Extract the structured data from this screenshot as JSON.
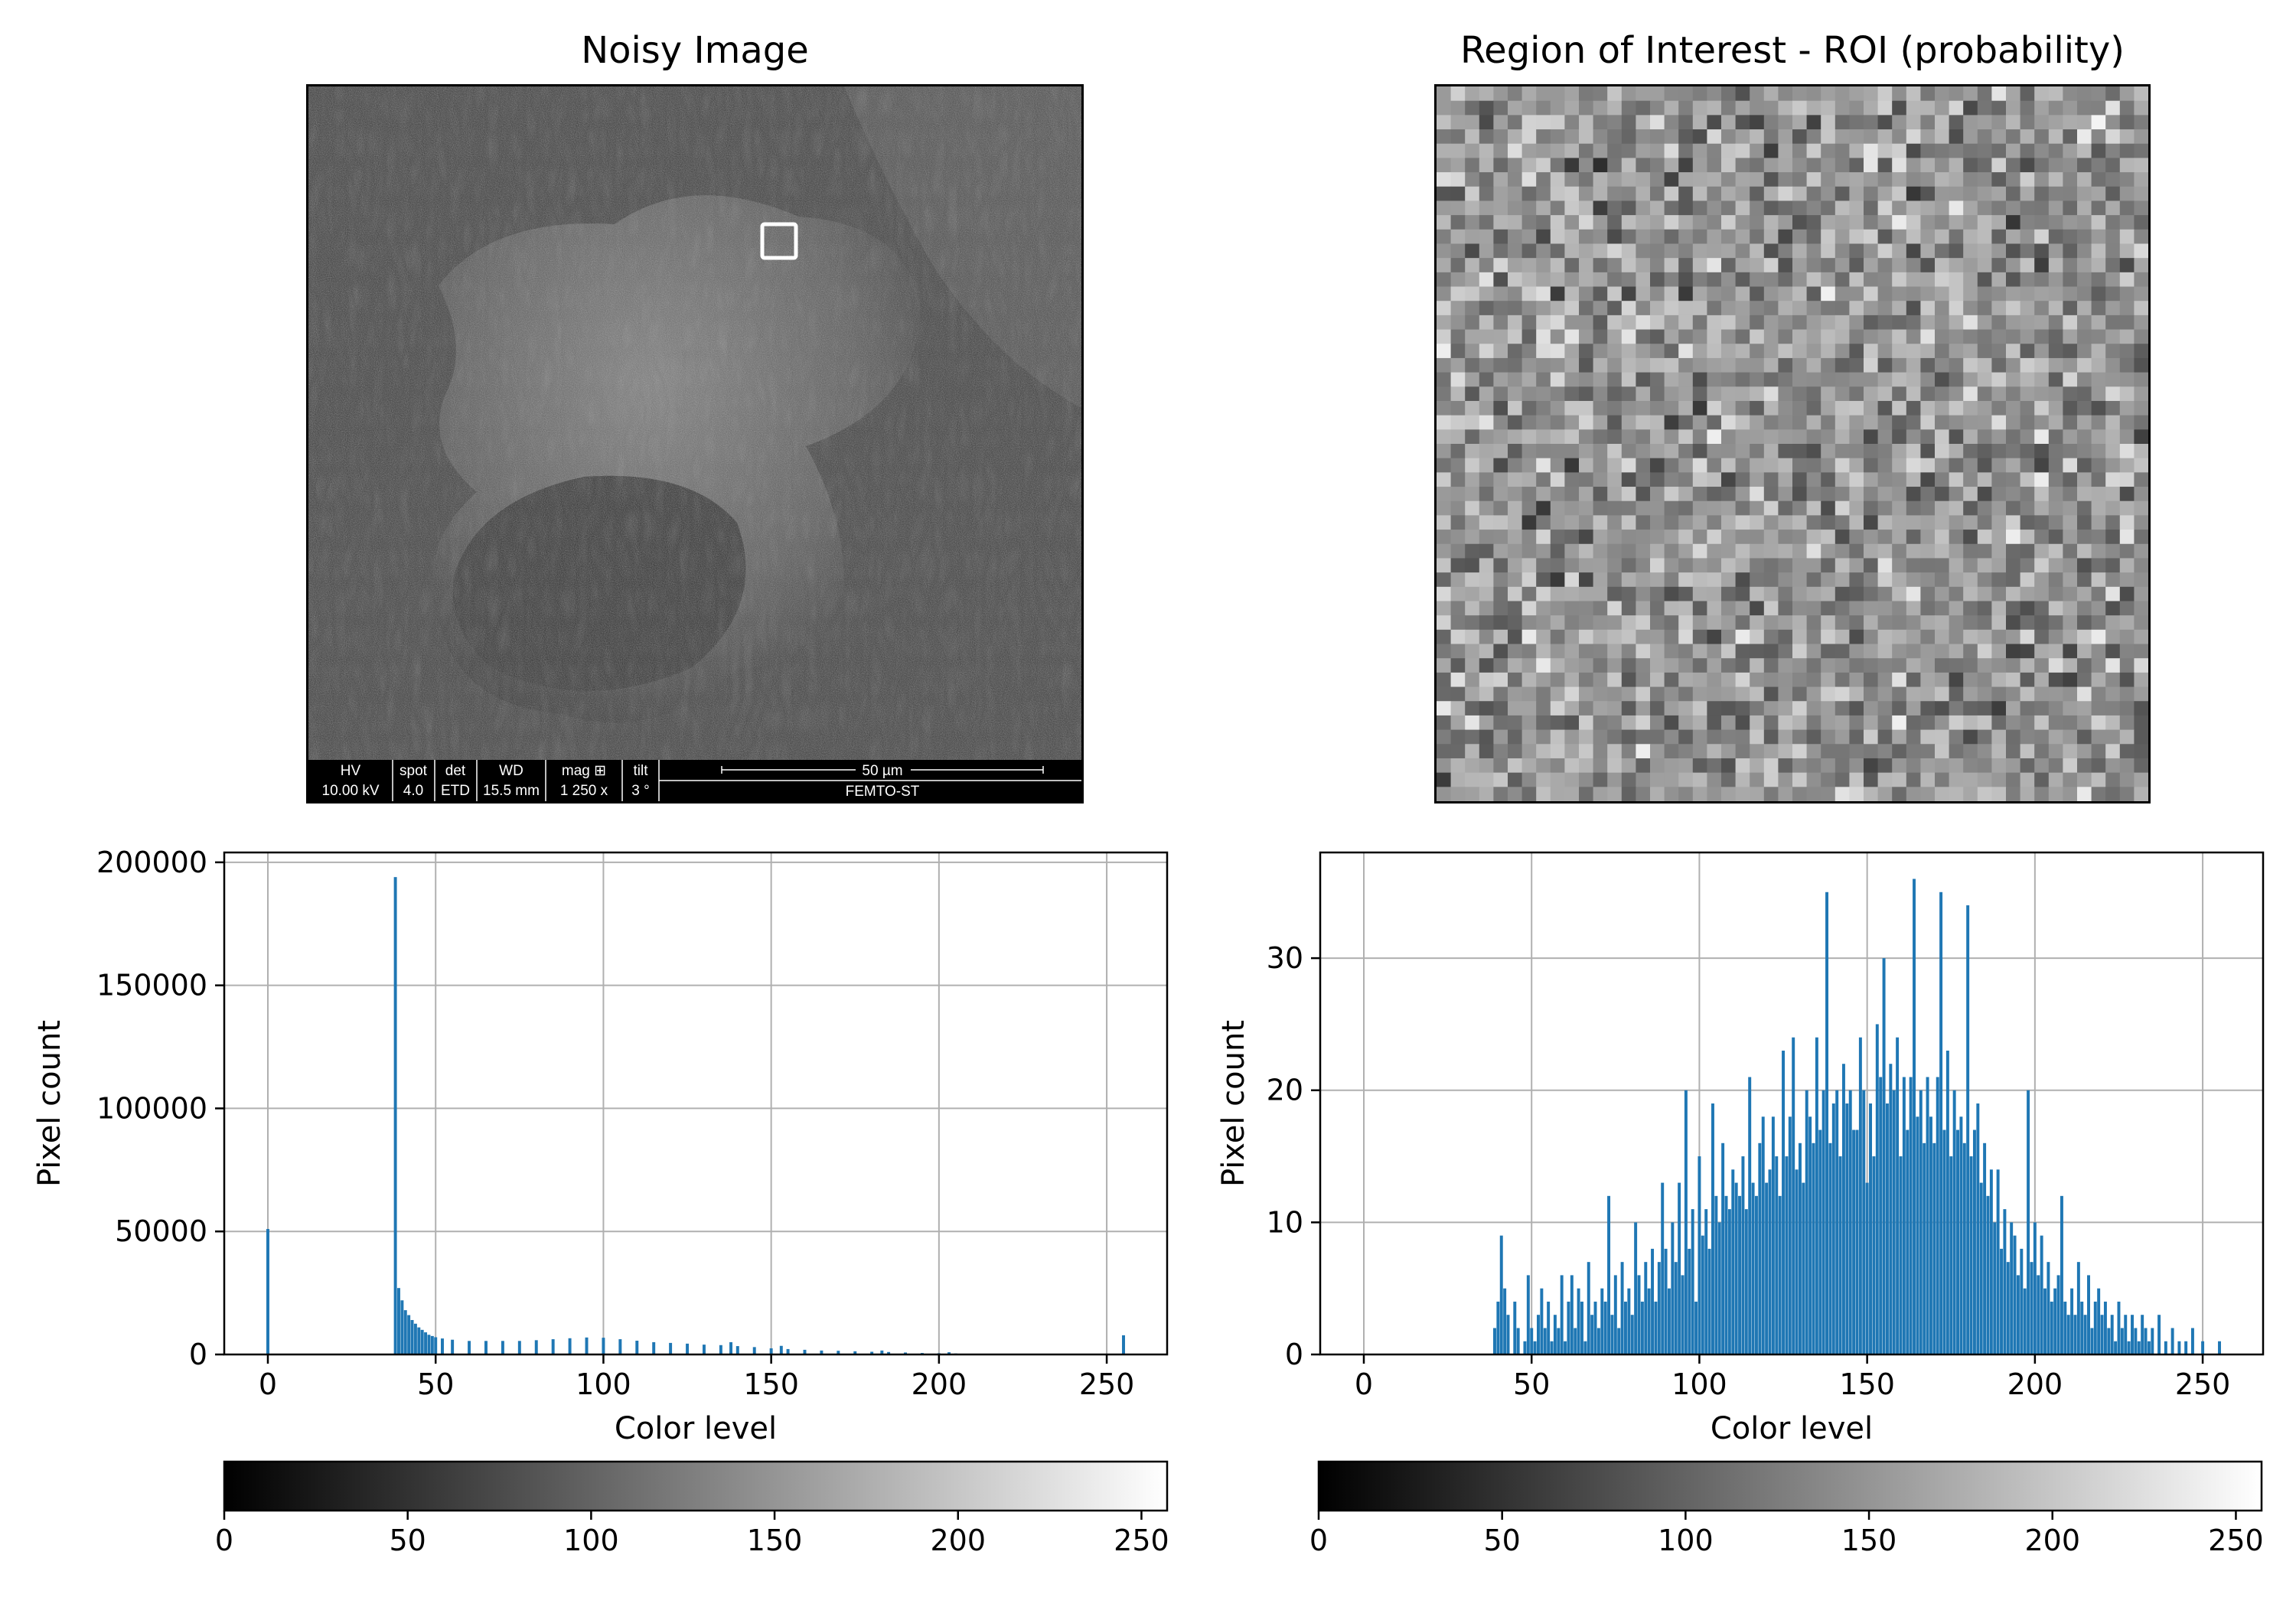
{
  "panels": {
    "noisy": {
      "title": "Noisy Image",
      "sem_bar": {
        "headers": [
          "HV",
          "spot",
          "det",
          "WD",
          "mag ⊞",
          "tilt"
        ],
        "values": [
          "10.00 kV",
          "4.0",
          "ETD",
          "15.5 mm",
          "1 250 x",
          "3 °"
        ],
        "scale_label": "50 µm",
        "institution": "FEMTO-ST"
      }
    },
    "roi": {
      "title": "Region of Interest - ROI (probability)"
    }
  },
  "colors": {
    "bar": "#1f77b4",
    "grid": "#b0b0b0",
    "roi_marker": "#ffffff"
  },
  "chart_data": [
    {
      "type": "bar",
      "name": "full-image-histogram",
      "xlabel": "Color level",
      "ylabel": "Pixel count",
      "xlim": [
        -13,
        268
      ],
      "ylim": [
        0,
        204000
      ],
      "xticks": [
        0,
        50,
        100,
        150,
        200,
        250
      ],
      "yticks": [
        0,
        50000,
        100000,
        150000,
        200000
      ],
      "grid": true,
      "points": [
        [
          0,
          51000
        ],
        [
          38,
          194000
        ],
        [
          39,
          27000
        ],
        [
          40,
          22000
        ],
        [
          41,
          18000
        ],
        [
          42,
          16000
        ],
        [
          43,
          14000
        ],
        [
          44,
          12500
        ],
        [
          45,
          11000
        ],
        [
          46,
          10000
        ],
        [
          47,
          9000
        ],
        [
          48,
          8000
        ],
        [
          49,
          7500
        ],
        [
          50,
          7000
        ],
        [
          52,
          6500
        ],
        [
          55,
          6000
        ],
        [
          60,
          5500
        ],
        [
          65,
          5500
        ],
        [
          70,
          5500
        ],
        [
          75,
          5500
        ],
        [
          80,
          5800
        ],
        [
          85,
          6200
        ],
        [
          90,
          6600
        ],
        [
          95,
          6900
        ],
        [
          100,
          6800
        ],
        [
          105,
          6200
        ],
        [
          110,
          5600
        ],
        [
          115,
          5000
        ],
        [
          120,
          4700
        ],
        [
          125,
          4400
        ],
        [
          130,
          4000
        ],
        [
          135,
          3800
        ],
        [
          138,
          5000
        ],
        [
          140,
          3400
        ],
        [
          145,
          3000
        ],
        [
          150,
          2500
        ],
        [
          153,
          3500
        ],
        [
          155,
          2200
        ],
        [
          160,
          1900
        ],
        [
          165,
          1600
        ],
        [
          170,
          1500
        ],
        [
          175,
          1300
        ],
        [
          180,
          1100
        ],
        [
          183,
          1600
        ],
        [
          185,
          1000
        ],
        [
          190,
          800
        ],
        [
          195,
          600
        ],
        [
          200,
          500
        ],
        [
          203,
          900
        ],
        [
          205,
          400
        ],
        [
          210,
          300
        ],
        [
          215,
          200
        ],
        [
          220,
          150
        ],
        [
          230,
          100
        ],
        [
          240,
          60
        ],
        [
          250,
          40
        ],
        [
          255,
          7800
        ]
      ]
    },
    {
      "type": "bar",
      "name": "roi-histogram",
      "xlabel": "Color level",
      "ylabel": "Pixel count",
      "xlim": [
        -13,
        268
      ],
      "ylim": [
        0,
        38
      ],
      "xticks": [
        0,
        50,
        100,
        150,
        200,
        250
      ],
      "yticks": [
        0,
        10,
        20,
        30
      ],
      "grid": true,
      "points": [
        [
          39,
          2
        ],
        [
          40,
          4
        ],
        [
          41,
          9
        ],
        [
          42,
          5
        ],
        [
          43,
          3
        ],
        [
          45,
          4
        ],
        [
          46,
          2
        ],
        [
          48,
          1
        ],
        [
          49,
          6
        ],
        [
          50,
          2
        ],
        [
          51,
          1
        ],
        [
          52,
          3
        ],
        [
          53,
          5
        ],
        [
          54,
          2
        ],
        [
          55,
          4
        ],
        [
          56,
          1
        ],
        [
          57,
          3
        ],
        [
          58,
          2
        ],
        [
          59,
          6
        ],
        [
          60,
          1
        ],
        [
          61,
          4
        ],
        [
          62,
          6
        ],
        [
          63,
          2
        ],
        [
          64,
          5
        ],
        [
          65,
          4
        ],
        [
          66,
          1
        ],
        [
          67,
          7
        ],
        [
          68,
          3
        ],
        [
          69,
          4
        ],
        [
          70,
          2
        ],
        [
          71,
          5
        ],
        [
          72,
          4
        ],
        [
          73,
          12
        ],
        [
          74,
          3
        ],
        [
          75,
          6
        ],
        [
          76,
          2
        ],
        [
          77,
          7
        ],
        [
          78,
          4
        ],
        [
          79,
          5
        ],
        [
          80,
          3
        ],
        [
          81,
          10
        ],
        [
          82,
          6
        ],
        [
          83,
          4
        ],
        [
          84,
          7
        ],
        [
          85,
          5
        ],
        [
          86,
          8
        ],
        [
          87,
          4
        ],
        [
          88,
          7
        ],
        [
          89,
          13
        ],
        [
          90,
          8
        ],
        [
          91,
          5
        ],
        [
          92,
          10
        ],
        [
          93,
          7
        ],
        [
          94,
          13
        ],
        [
          95,
          6
        ],
        [
          96,
          20
        ],
        [
          97,
          8
        ],
        [
          98,
          11
        ],
        [
          99,
          4
        ],
        [
          100,
          15
        ],
        [
          101,
          9
        ],
        [
          102,
          11
        ],
        [
          103,
          8
        ],
        [
          104,
          19
        ],
        [
          105,
          12
        ],
        [
          106,
          10
        ],
        [
          107,
          16
        ],
        [
          108,
          12
        ],
        [
          109,
          11
        ],
        [
          110,
          14
        ],
        [
          111,
          13
        ],
        [
          112,
          12
        ],
        [
          113,
          15
        ],
        [
          114,
          11
        ],
        [
          115,
          21
        ],
        [
          116,
          13
        ],
        [
          117,
          12
        ],
        [
          118,
          16
        ],
        [
          119,
          18
        ],
        [
          120,
          13
        ],
        [
          121,
          14
        ],
        [
          122,
          18
        ],
        [
          123,
          15
        ],
        [
          124,
          12
        ],
        [
          125,
          23
        ],
        [
          126,
          15
        ],
        [
          127,
          18
        ],
        [
          128,
          24
        ],
        [
          129,
          14
        ],
        [
          130,
          16
        ],
        [
          131,
          13
        ],
        [
          132,
          20
        ],
        [
          133,
          18
        ],
        [
          134,
          16
        ],
        [
          135,
          24
        ],
        [
          136,
          17
        ],
        [
          137,
          20
        ],
        [
          138,
          35
        ],
        [
          139,
          16
        ],
        [
          140,
          19
        ],
        [
          141,
          20
        ],
        [
          142,
          15
        ],
        [
          143,
          22
        ],
        [
          144,
          19
        ],
        [
          145,
          20
        ],
        [
          146,
          17
        ],
        [
          147,
          17
        ],
        [
          148,
          24
        ],
        [
          149,
          20
        ],
        [
          150,
          13
        ],
        [
          151,
          19
        ],
        [
          152,
          15
        ],
        [
          153,
          25
        ],
        [
          154,
          21
        ],
        [
          155,
          30
        ],
        [
          156,
          19
        ],
        [
          157,
          22
        ],
        [
          158,
          20
        ],
        [
          159,
          24
        ],
        [
          160,
          15
        ],
        [
          161,
          21
        ],
        [
          162,
          17
        ],
        [
          163,
          21
        ],
        [
          164,
          36
        ],
        [
          165,
          18
        ],
        [
          166,
          20
        ],
        [
          167,
          16
        ],
        [
          168,
          21
        ],
        [
          169,
          18
        ],
        [
          170,
          16
        ],
        [
          171,
          21
        ],
        [
          172,
          35
        ],
        [
          173,
          17
        ],
        [
          174,
          23
        ],
        [
          175,
          15
        ],
        [
          176,
          20
        ],
        [
          177,
          17
        ],
        [
          178,
          18
        ],
        [
          179,
          16
        ],
        [
          180,
          34
        ],
        [
          181,
          15
        ],
        [
          182,
          17
        ],
        [
          183,
          19
        ],
        [
          184,
          13
        ],
        [
          185,
          16
        ],
        [
          186,
          12
        ],
        [
          187,
          14
        ],
        [
          188,
          10
        ],
        [
          189,
          14
        ],
        [
          190,
          8
        ],
        [
          191,
          11
        ],
        [
          192,
          7
        ],
        [
          193,
          10
        ],
        [
          194,
          9
        ],
        [
          195,
          6
        ],
        [
          196,
          8
        ],
        [
          197,
          5
        ],
        [
          198,
          20
        ],
        [
          199,
          7
        ],
        [
          200,
          10
        ],
        [
          201,
          6
        ],
        [
          202,
          9
        ],
        [
          203,
          5
        ],
        [
          204,
          7
        ],
        [
          205,
          4
        ],
        [
          206,
          5
        ],
        [
          207,
          6
        ],
        [
          208,
          12
        ],
        [
          209,
          4
        ],
        [
          210,
          3
        ],
        [
          211,
          5
        ],
        [
          212,
          3
        ],
        [
          213,
          7
        ],
        [
          214,
          4
        ],
        [
          215,
          3
        ],
        [
          216,
          6
        ],
        [
          217,
          2
        ],
        [
          218,
          4
        ],
        [
          219,
          5
        ],
        [
          220,
          3
        ],
        [
          221,
          4
        ],
        [
          222,
          2
        ],
        [
          223,
          3
        ],
        [
          224,
          1
        ],
        [
          225,
          4
        ],
        [
          226,
          2
        ],
        [
          227,
          3
        ],
        [
          228,
          1
        ],
        [
          229,
          3
        ],
        [
          230,
          2
        ],
        [
          231,
          1
        ],
        [
          232,
          3
        ],
        [
          233,
          2
        ],
        [
          234,
          1
        ],
        [
          235,
          2
        ],
        [
          237,
          3
        ],
        [
          239,
          1
        ],
        [
          241,
          2
        ],
        [
          243,
          1
        ],
        [
          245,
          1
        ],
        [
          247,
          2
        ],
        [
          250,
          1
        ],
        [
          255,
          1
        ]
      ]
    },
    {
      "type": "colorbar",
      "name": "colorbar-left",
      "cmap": "gray",
      "range": [
        0,
        257
      ],
      "ticks": [
        0,
        50,
        100,
        150,
        200,
        250
      ]
    },
    {
      "type": "colorbar",
      "name": "colorbar-right",
      "cmap": "gray",
      "range": [
        0,
        257
      ],
      "ticks": [
        0,
        50,
        100,
        150,
        200,
        250
      ]
    }
  ]
}
